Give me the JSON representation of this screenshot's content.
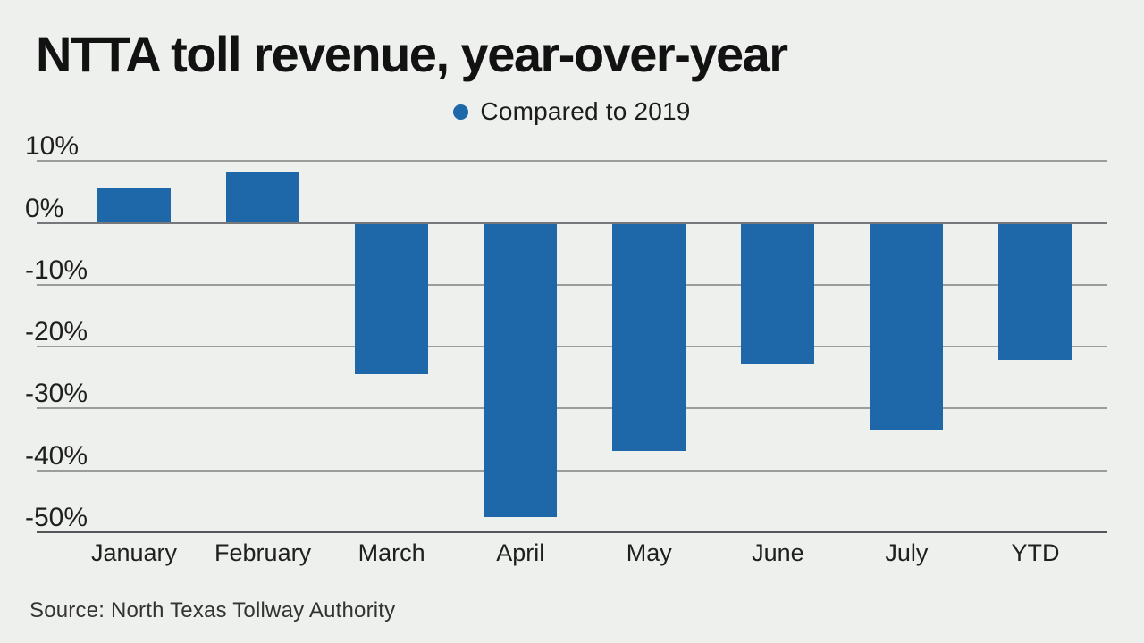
{
  "page": {
    "background_color": "#eef0ed"
  },
  "header": {
    "title": "NTTA toll revenue, year-over-year"
  },
  "legend": {
    "label": "Compared to 2019",
    "marker_color": "#1e67a8"
  },
  "footer": {
    "source": "Source: North Texas Tollway Authority"
  },
  "chart_data": {
    "type": "bar",
    "title": "NTTA toll revenue, year-over-year",
    "legend_entries": [
      "Compared to 2019"
    ],
    "legend_position": "top-center",
    "categories": [
      "January",
      "February",
      "March",
      "April",
      "May",
      "June",
      "July",
      "YTD"
    ],
    "values": [
      5.5,
      8.2,
      -24.5,
      -47.6,
      -36.8,
      -22.8,
      -33.6,
      -22.2
    ],
    "unit": "%",
    "xlabel": "",
    "ylabel": "",
    "ylim": [
      -50,
      10
    ],
    "yticks": [
      10,
      0,
      -10,
      -20,
      -30,
      -40,
      -50
    ],
    "ytick_labels": [
      "10%",
      "0%",
      "-10%",
      "-20%",
      "-30%",
      "-40%",
      "-50%"
    ],
    "grid": true,
    "bar_color": "#1e67a8",
    "gridline_color": "#9b9c9b",
    "zero_line_color": "#75777a",
    "axis_line_color": "#545559"
  }
}
